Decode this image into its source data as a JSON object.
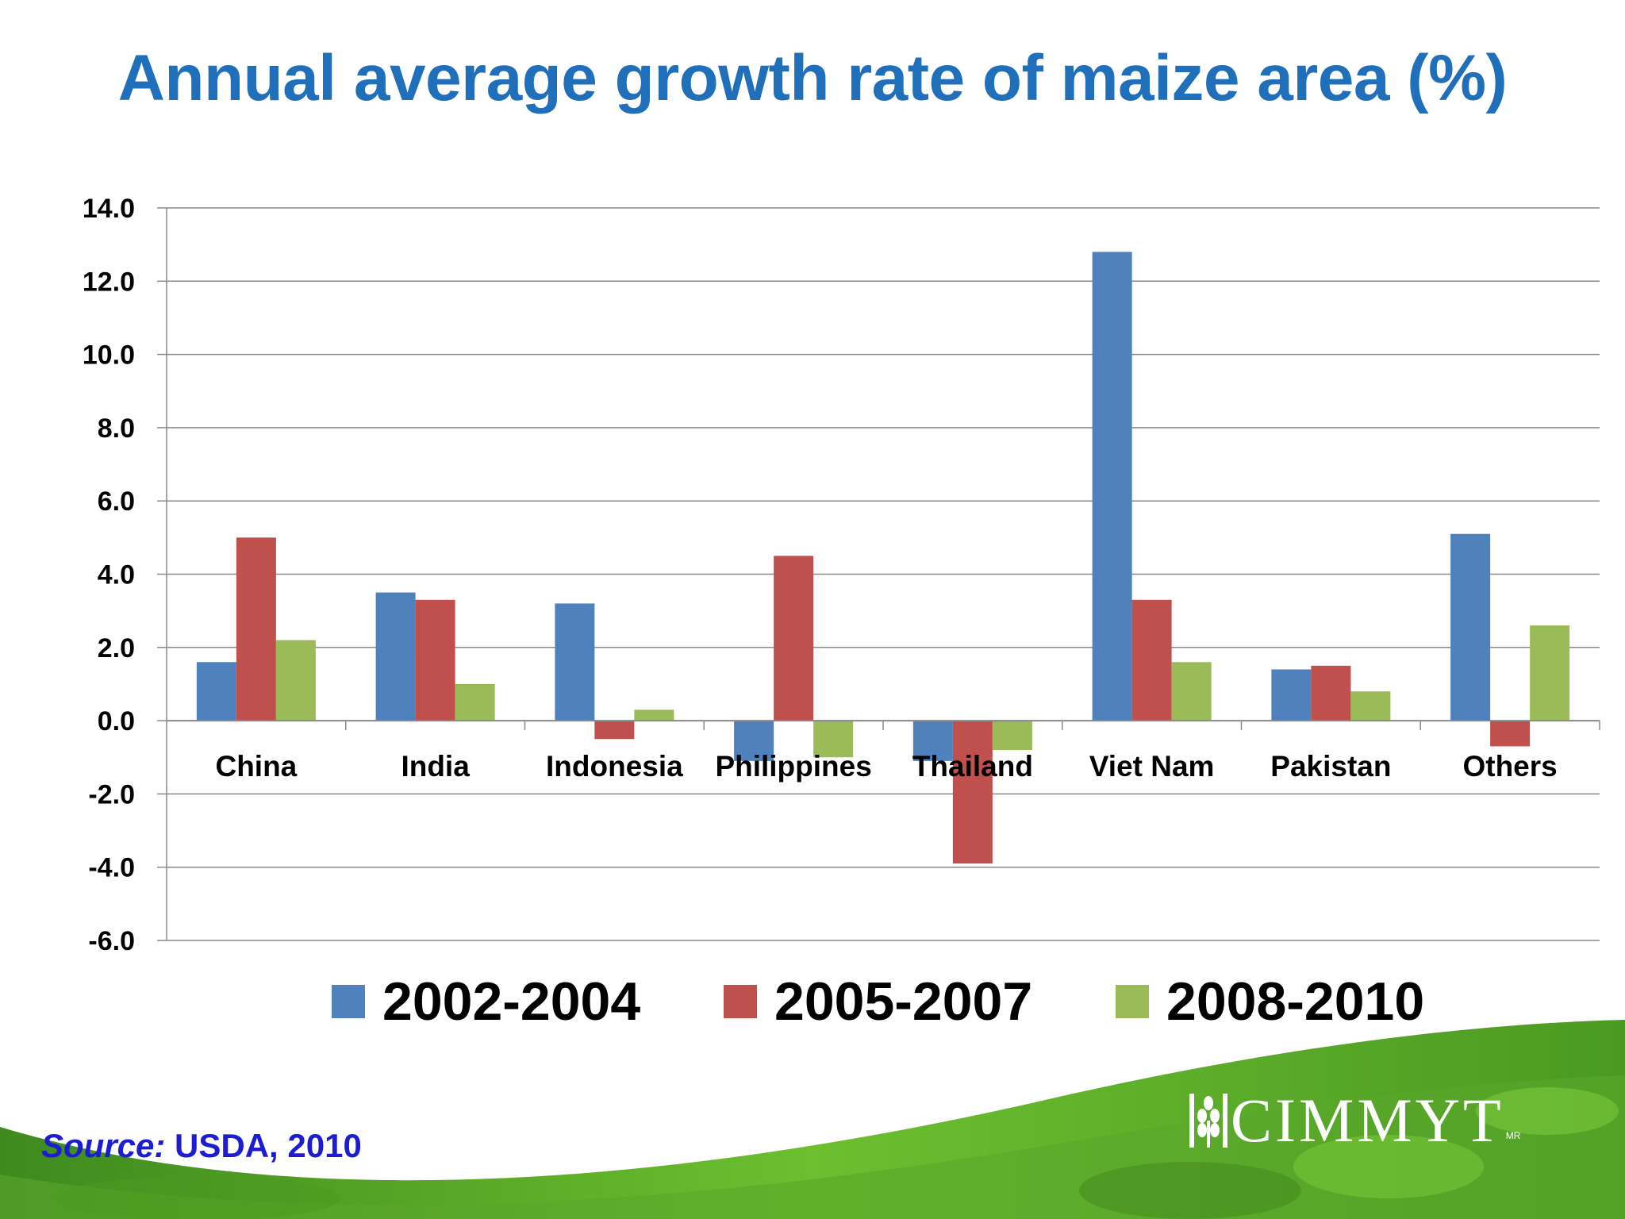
{
  "chart_data": {
    "type": "bar",
    "title": "Annual average growth rate of maize area (%)",
    "categories": [
      "China",
      "India",
      "Indonesia",
      "Philippines",
      "Thailand",
      "Viet Nam",
      "Pakistan",
      "Others"
    ],
    "series": [
      {
        "name": "2002-2004",
        "color": "#4f81bd",
        "values": [
          1.6,
          3.5,
          3.2,
          -1.1,
          -1.1,
          12.8,
          1.4,
          5.1
        ]
      },
      {
        "name": "2005-2007",
        "color": "#c0504d",
        "values": [
          5.0,
          3.3,
          -0.5,
          4.5,
          -3.9,
          3.3,
          1.5,
          -0.7
        ]
      },
      {
        "name": "2008-2010",
        "color": "#9bbb59",
        "values": [
          2.2,
          1.0,
          0.3,
          -1.0,
          -0.8,
          1.6,
          0.8,
          2.6
        ]
      }
    ],
    "ylim": [
      -6.0,
      14.0
    ],
    "yticks": [
      "14.0",
      "12.0",
      "10.0",
      "8.0",
      "6.0",
      "4.0",
      "2.0",
      "0.0",
      "-2.0",
      "-4.0",
      "-6.0"
    ],
    "grid": true,
    "legend_position": "bottom"
  },
  "source": {
    "key": "Source:",
    "text": " USDA, 2010"
  },
  "logo": {
    "text": "CIMMYT",
    "mark": "MR"
  },
  "colors": {
    "title": "#1f6fba",
    "source": "#1c1cd0",
    "green_band": "#5aa62c"
  }
}
